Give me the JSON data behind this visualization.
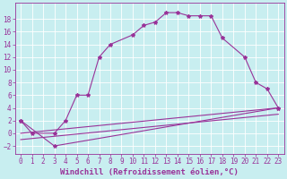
{
  "xlabel": "Windchill (Refroidissement éolien,°C)",
  "background_color": "#c8eef0",
  "grid_color": "#ffffff",
  "line_color": "#993399",
  "xlim": [
    -0.5,
    23.5
  ],
  "ylim": [
    -3.2,
    20.5
  ],
  "xticks": [
    0,
    1,
    2,
    3,
    4,
    5,
    6,
    7,
    8,
    9,
    10,
    11,
    12,
    13,
    14,
    15,
    16,
    17,
    18,
    19,
    20,
    21,
    22,
    23
  ],
  "yticks": [
    -2,
    0,
    2,
    4,
    6,
    8,
    10,
    12,
    14,
    16,
    18
  ],
  "line1_x": [
    0,
    1,
    3,
    4,
    5,
    6,
    7,
    8,
    10,
    11,
    12,
    13,
    14,
    15,
    16,
    17,
    18,
    20,
    21,
    22,
    23
  ],
  "line1_y": [
    2,
    0,
    0,
    2,
    6,
    6,
    12,
    14,
    15.5,
    17,
    17.5,
    19,
    19,
    18.5,
    18.5,
    18.5,
    15,
    12,
    8,
    7,
    4
  ],
  "line2_x": [
    0,
    23
  ],
  "line2_y": [
    0,
    4
  ],
  "line3_x": [
    0,
    23
  ],
  "line3_y": [
    -1,
    3
  ],
  "line4_x": [
    0,
    3,
    23
  ],
  "line4_y": [
    2,
    -2,
    4
  ],
  "font_size_xlabel": 6.5,
  "tick_fontsize": 5.5,
  "marker": "*",
  "markersize": 3,
  "linewidth": 0.8
}
